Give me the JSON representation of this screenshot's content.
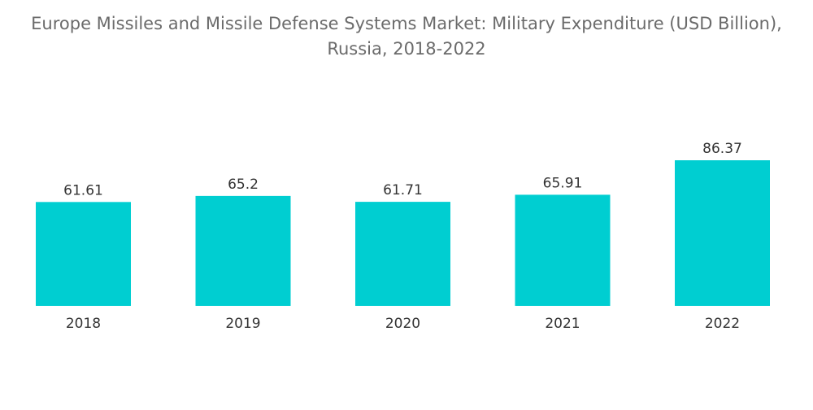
{
  "chart_data": {
    "type": "bar",
    "title": "Europe Missiles and Missile Defense Systems Market: Military Expenditure (USD Billion),",
    "subtitle": "Russia, 2018-2022",
    "xlabel": "",
    "ylabel": "",
    "categories": [
      "2018",
      "2019",
      "2020",
      "2021",
      "2022"
    ],
    "values": [
      61.61,
      65.2,
      61.71,
      65.91,
      86.37
    ],
    "value_labels": [
      "61.61",
      "65.2",
      "61.71",
      "65.91",
      "86.37"
    ],
    "ylim": [
      0,
      86.37
    ],
    "grid": false,
    "bar_color": "#00CED1"
  }
}
